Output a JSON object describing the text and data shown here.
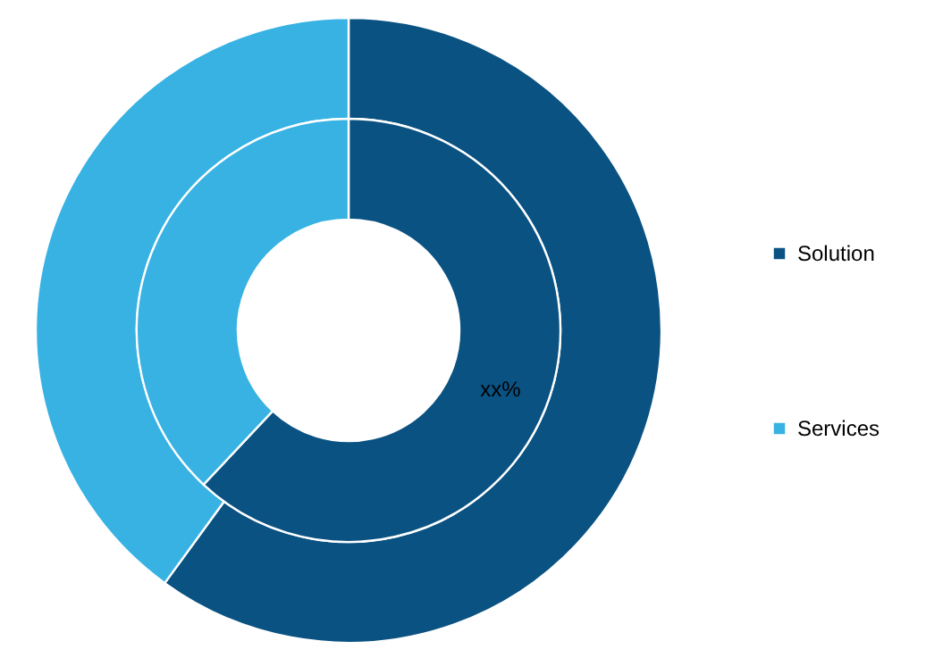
{
  "chart_data": {
    "type": "donut",
    "categories": [
      "Solution",
      "Services"
    ],
    "colors": [
      "#0a5282",
      "#37b2e3"
    ],
    "series": [
      {
        "values": [
          60,
          40
        ]
      },
      {
        "values": [
          62,
          38
        ]
      }
    ],
    "legend": "right",
    "annotations": [
      "xx%"
    ]
  }
}
